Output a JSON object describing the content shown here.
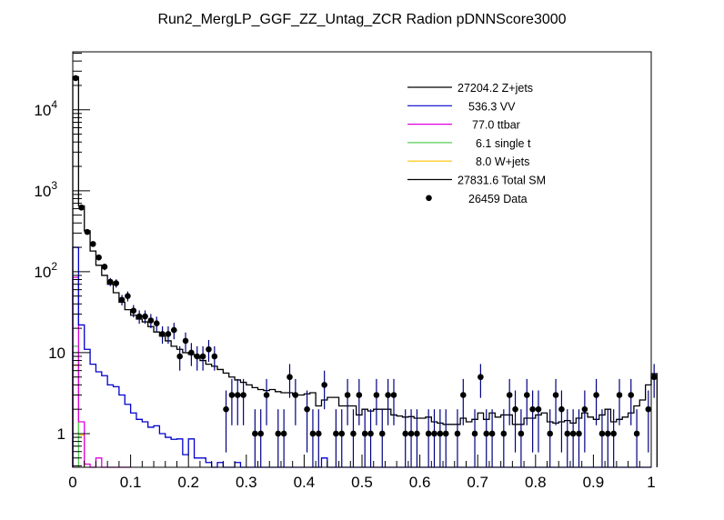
{
  "chart_data": {
    "type": "histogram",
    "title": "Run2_MergLP_GGF_ZZ_Untag_ZCR Radion  pDNNScore3000",
    "xlabel": "",
    "ylabel": "",
    "xlim": [
      0,
      1
    ],
    "ylim": [
      0.384,
      52000
    ],
    "yscale": "log",
    "grid": false,
    "legend_position": "top-right",
    "x_ticks": [
      "0",
      "0.1",
      "0.2",
      "0.3",
      "0.4",
      "0.5",
      "0.6",
      "0.7",
      "0.8",
      "0.9",
      "1"
    ],
    "x_tick_values": [
      0,
      0.1,
      0.2,
      0.3,
      0.4,
      0.5,
      0.6,
      0.7,
      0.8,
      0.9,
      1
    ],
    "y_ticks": [
      {
        "value": 1,
        "base": "1",
        "exp": ""
      },
      {
        "value": 10,
        "base": "10",
        "exp": ""
      },
      {
        "value": 100,
        "base": "10",
        "exp": "2"
      },
      {
        "value": 1000,
        "base": "10",
        "exp": "3"
      },
      {
        "value": 10000,
        "base": "10",
        "exp": "4"
      }
    ],
    "bin_width": 0.01,
    "legend": [
      {
        "label": "27204.2 Z+jets",
        "color": "#000000",
        "kind": "line"
      },
      {
        "label": "536.3 VV",
        "color": "#0000cc",
        "kind": "line"
      },
      {
        "label": "77.0 ttbar",
        "color": "#e000e0",
        "kind": "line"
      },
      {
        "label": "6.1 single t",
        "color": "#55cc55",
        "kind": "line"
      },
      {
        "label": "8.0 W+jets",
        "color": "#ffc000",
        "kind": "line"
      },
      {
        "label": "27831.6 Total SM",
        "color": "#000000",
        "kind": "line"
      },
      {
        "label": "26459 Data",
        "color": "#000000",
        "kind": "marker"
      }
    ],
    "series": [
      {
        "name": "Total SM",
        "color": "#000000",
        "values": [
          25500,
          650,
          320,
          180,
          120,
          90,
          70,
          55,
          42,
          34,
          29,
          26,
          24,
          21,
          18,
          16,
          14,
          12,
          11,
          10,
          9.5,
          9,
          8,
          7.2,
          6.8,
          6.2,
          5.6,
          5.0,
          4.6,
          4.3,
          4.0,
          3.7,
          3.5,
          3.4,
          3.5,
          3.3,
          3.2,
          3.2,
          3.0,
          3.0,
          3.1,
          3.2,
          2.2,
          2.6,
          2.8,
          2.8,
          2.2,
          2.2,
          2.2,
          1.7,
          2.0,
          1.9,
          2.0,
          2.0,
          2.0,
          1.7,
          1.65,
          1.6,
          1.62,
          1.55,
          1.55,
          1.6,
          1.4,
          1.35,
          1.3,
          1.3,
          1.3,
          1.55,
          1.4,
          1.5,
          1.8,
          1.5,
          1.8,
          1.6,
          1.7,
          1.7,
          1.3,
          1.3,
          1.55,
          1.55,
          1.7,
          1.8,
          1.4,
          1.35,
          1.4,
          1.45,
          1.35,
          1.55,
          1.8,
          1.6,
          1.5,
          1.7,
          2.0,
          1.4,
          1.5,
          1.6,
          1.8,
          2.2,
          2.6,
          4.0,
          5.5
        ]
      },
      {
        "name": "VV",
        "color": "#0000cc",
        "values": [
          200,
          22,
          11,
          7.2,
          5.8,
          5.2,
          4.0,
          3.8,
          3.0,
          2.3,
          1.8,
          1.5,
          1.4,
          1.2,
          1.25,
          1.0,
          0.9,
          0.85,
          0.86,
          0.55,
          0.86,
          0.5,
          0.5,
          0.44,
          0.38,
          0.44,
          0.38,
          0.38,
          0.44,
          0.38,
          0.38,
          0.38,
          0.38,
          0.38,
          0.38,
          0.38,
          0.38,
          0.38,
          0.38,
          0.38,
          0.38,
          0.38,
          0.38,
          0.5,
          0.38,
          0.38,
          0.38,
          0.38,
          0.38,
          0.38,
          0.38,
          0.38,
          0.38,
          0.38,
          0.38,
          0.38,
          0.38,
          0.38,
          0.38,
          0.38,
          0.38,
          0.38,
          0.38,
          0.38,
          0.38,
          0.38,
          0.38,
          0.38,
          0.38,
          0.38,
          0.38,
          0.38,
          0.38,
          0.38,
          0.38,
          0.38,
          0.38,
          0.38,
          0.38,
          0.38,
          0.38,
          0.38,
          0.38,
          0.38,
          0.38,
          0.38,
          0.38,
          0.38,
          0.38,
          0.38,
          0.38,
          0.38,
          0.38,
          0.38,
          0.38,
          0.38,
          0.38,
          0.38,
          0.38,
          0.38
        ]
      },
      {
        "name": "ttbar",
        "color": "#e000e0",
        "values": [
          85,
          1.4,
          0.42,
          0.38,
          0.5,
          0.38,
          0.38,
          0.38,
          0.38,
          0.38
        ]
      },
      {
        "name": "single t",
        "color": "#55cc55",
        "values": [
          12
        ]
      },
      {
        "name": "W+jets",
        "color": "#ffc000",
        "values": [
          7,
          0.96
        ]
      }
    ],
    "data_points": {
      "name": "Data",
      "color": "#000000",
      "error_color": "#000080",
      "values": [
        24600,
        620,
        310,
        220,
        150,
        115,
        75,
        72,
        45,
        50,
        33,
        28,
        28,
        25,
        23,
        17,
        17,
        19,
        9,
        14,
        10,
        9,
        9,
        11,
        9,
        0,
        2,
        3,
        3,
        3,
        0,
        1,
        1,
        3,
        0,
        1,
        1,
        5,
        3,
        0,
        2,
        1,
        1,
        4,
        0,
        1,
        1,
        3,
        1,
        3,
        1,
        1,
        3,
        1,
        3,
        3,
        0,
        1,
        1,
        1,
        0,
        1,
        1,
        1,
        1,
        0,
        1,
        3,
        0,
        1,
        5,
        1,
        1,
        0,
        1,
        3,
        2,
        1,
        3,
        2,
        2,
        0,
        1,
        3,
        2,
        1,
        1,
        1,
        2,
        0,
        3,
        1,
        1,
        1,
        3,
        0,
        3,
        1,
        0,
        2,
        5
      ]
    }
  }
}
